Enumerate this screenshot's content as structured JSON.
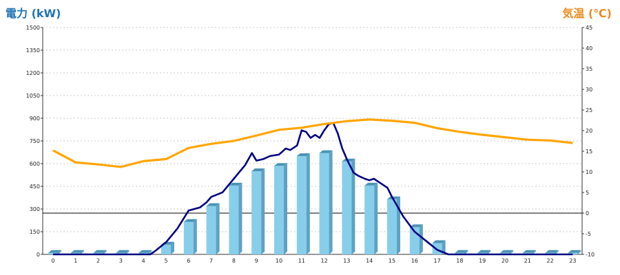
{
  "chart_data": {
    "type": "bar+line",
    "ylabel_left": "電力 (kW)",
    "ylabel_right": "気温 (℃)",
    "categories": [
      "0",
      "1",
      "2",
      "3",
      "4",
      "5",
      "6",
      "7",
      "8",
      "9",
      "10",
      "11",
      "12",
      "13",
      "14",
      "15",
      "16",
      "17",
      "18",
      "19",
      "20",
      "21",
      "22",
      "23"
    ],
    "ylim_left": [
      0,
      1500
    ],
    "yticks_left": [
      "0",
      "150",
      "300",
      "450",
      "600",
      "750",
      "900",
      "1050",
      "1200",
      "1350",
      "1500"
    ],
    "ylim_right": [
      -10,
      45
    ],
    "yticks_right": [
      "-10",
      "-5",
      "0",
      "5",
      "10",
      "15",
      "20",
      "25",
      "30",
      "35",
      "40",
      "45"
    ],
    "grid": true,
    "series": [
      {
        "kind": "bar",
        "color": "#87ceeb",
        "values": [
          10,
          10,
          10,
          10,
          10,
          65,
          215,
          320,
          455,
          550,
          585,
          650,
          670,
          615,
          455,
          365,
          180,
          75,
          10,
          10,
          10,
          10,
          10,
          10
        ]
      },
      {
        "kind": "line",
        "color": "#000080",
        "x": [
          0,
          4.3,
          4.5,
          5,
          5.5,
          6,
          6.5,
          6.8,
          7,
          7.5,
          8,
          8.5,
          8.8,
          9,
          9.3,
          9.6,
          10,
          10.3,
          10.5,
          10.8,
          11,
          11.2,
          11.4,
          11.6,
          11.8,
          12,
          12.2,
          12.4,
          12.6,
          12.8,
          13,
          13.3,
          13.5,
          13.8,
          14,
          14.2,
          14.5,
          14.8,
          15,
          15.5,
          16,
          16.5,
          17,
          17.5,
          18,
          23
        ],
        "y": [
          0,
          0,
          20,
          80,
          170,
          290,
          310,
          345,
          380,
          410,
          500,
          590,
          670,
          620,
          630,
          650,
          660,
          700,
          690,
          720,
          820,
          810,
          770,
          790,
          770,
          820,
          860,
          870,
          800,
          700,
          630,
          540,
          520,
          500,
          490,
          500,
          470,
          440,
          380,
          250,
          150,
          90,
          30,
          0,
          0,
          0
        ]
      },
      {
        "kind": "line",
        "axis": "right",
        "color": "#ffa500",
        "values": [
          15.2,
          12.3,
          11.8,
          11.2,
          12.6,
          13.1,
          15.8,
          16.8,
          17.5,
          18.8,
          20.2,
          20.7,
          21.6,
          22.3,
          22.7,
          22.4,
          21.9,
          20.6,
          19.7,
          19.0,
          18.4,
          17.8,
          17.6,
          17.0
        ]
      }
    ]
  }
}
